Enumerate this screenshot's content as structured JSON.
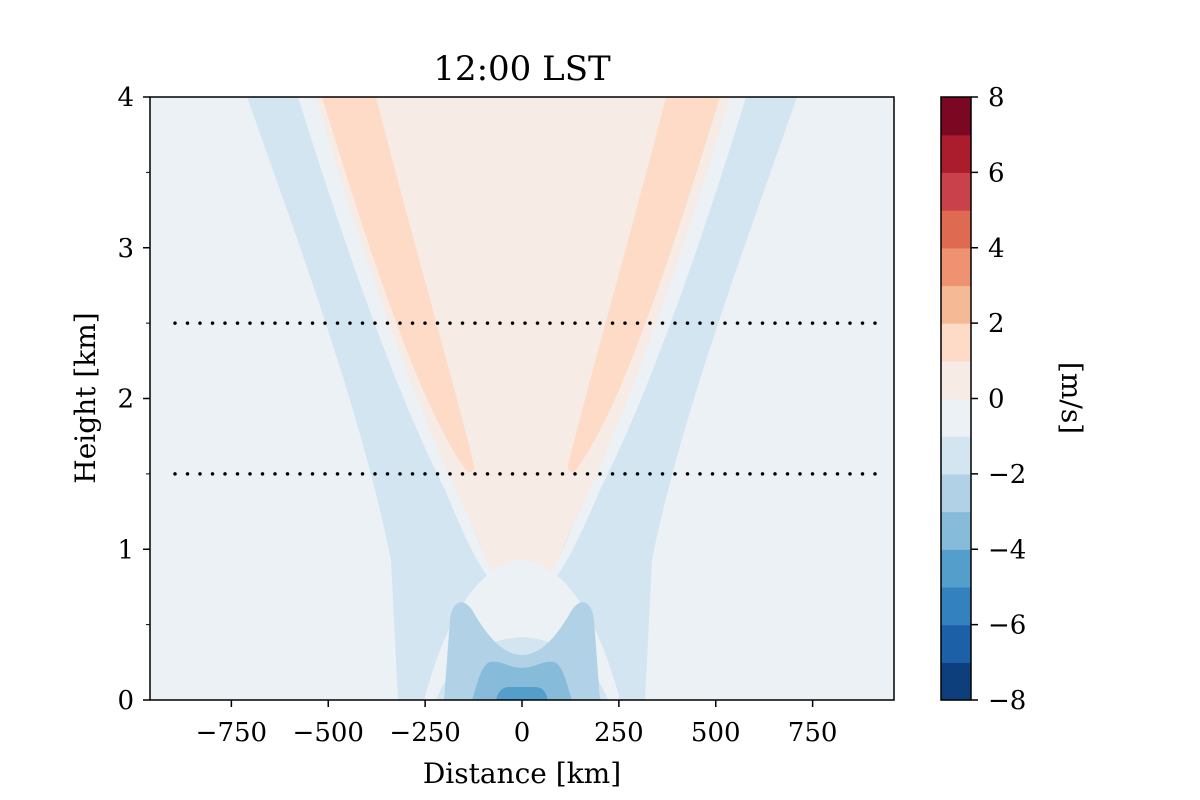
{
  "chart_data": {
    "type": "heatmap",
    "title": "12:00 LST",
    "xlabel": "Distance [km]",
    "ylabel": "Height [km]",
    "xlim": [
      -960,
      960
    ],
    "ylim": [
      0,
      4
    ],
    "xticks": [
      -750,
      -500,
      -250,
      0,
      250,
      500,
      750
    ],
    "xtick_labels": [
      "−750",
      "−500",
      "−250",
      "0",
      "250",
      "500",
      "750"
    ],
    "yticks": [
      0,
      1,
      2,
      3,
      4
    ],
    "ytick_labels": [
      "0",
      "1",
      "2",
      "3",
      "4"
    ],
    "y_minor_ticks": [
      0.5,
      1.5,
      2.5,
      3.5
    ],
    "reference_lines": [
      {
        "y": 1.5,
        "style": "dotted",
        "color": "#000000"
      },
      {
        "y": 2.5,
        "style": "dotted",
        "color": "#000000"
      }
    ],
    "colorbar": {
      "label": "[m/s]",
      "range": [
        -8,
        8
      ],
      "levels": [
        -8,
        -7,
        -6,
        -5,
        -4,
        -3,
        -2,
        -1,
        0,
        1,
        2,
        3,
        4,
        5,
        6,
        7,
        8
      ],
      "colors": [
        "#0c3f7c",
        "#1c60a8",
        "#3381bd",
        "#549ecb",
        "#86bbda",
        "#b1d2e6",
        "#d2e5f1",
        "#ebf1f5",
        "#f7ebe6",
        "#fddbc7",
        "#f6b996",
        "#ee9272",
        "#de6a51",
        "#c8414b",
        "#ab1d2c",
        "#7a0822"
      ],
      "ticks": [
        8,
        6,
        4,
        2,
        0,
        -2,
        -4,
        -6,
        -8
      ],
      "tick_labels": [
        "8",
        "6",
        "4",
        "2",
        "0",
        "−2",
        "−4",
        "−6",
        "−8"
      ]
    },
    "field_regions": [
      {
        "name": "background",
        "value_range": [
          -1,
          0
        ],
        "color": "#ebf1f5"
      },
      {
        "name": "v-shaped outer band",
        "value_range": [
          -2,
          -1
        ],
        "color": "#d2e5f1"
      },
      {
        "name": "v-shaped inner gap",
        "value_range": [
          -1,
          0
        ],
        "color": "#ebf1f5"
      },
      {
        "name": "upper core",
        "value_range": [
          0,
          1
        ],
        "color": "#f7ebe6"
      },
      {
        "name": "left upper jet",
        "value_range": [
          1,
          2
        ],
        "color": "#fddbc7"
      },
      {
        "name": "right upper jet",
        "value_range": [
          1,
          2
        ],
        "color": "#fddbc7"
      },
      {
        "name": "near-surface ring",
        "value_range": [
          -1,
          0
        ],
        "color": "#ebf1f5"
      },
      {
        "name": "near-surface band",
        "value_range": [
          -2,
          -1
        ],
        "color": "#d2e5f1"
      },
      {
        "name": "surface twin peaks",
        "value_range": [
          -3,
          -2
        ],
        "color": "#b1d2e6"
      },
      {
        "name": "surface core",
        "value_range": [
          -4,
          -3
        ],
        "color": "#86bbda"
      },
      {
        "name": "surface minimum",
        "value_range": [
          -5,
          -4
        ],
        "color": "#549ecb"
      }
    ]
  }
}
